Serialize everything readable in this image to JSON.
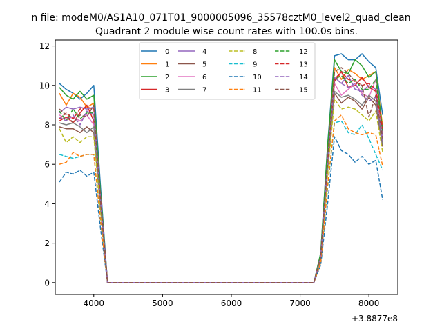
{
  "suptitle": "n file: modeM0/AS1A10_071T01_9000005096_35578cztM0_level2_quad_clean",
  "chart_data": {
    "type": "line",
    "title": "Quadrant 2 module wise count rates with 100.0s bins.",
    "xlabel": "",
    "ylabel": "",
    "x_offset_label": "+3.8877e8",
    "xlim": [
      3440,
      8420
    ],
    "ylim": [
      -0.6,
      12.3
    ],
    "xticks": [
      4000,
      5000,
      6000,
      7000,
      8000
    ],
    "xtick_labels": [
      "4000",
      "5000",
      "6000",
      "7000",
      "8000"
    ],
    "yticks": [
      0,
      2,
      4,
      6,
      8,
      10,
      12
    ],
    "ytick_labels": [
      "0",
      "2",
      "4",
      "6",
      "8",
      "10",
      "12"
    ],
    "grid": false,
    "legend_position": "upper center",
    "x": [
      3500,
      3600,
      3700,
      3800,
      3900,
      4000,
      4100,
      4200,
      4300,
      4400,
      4500,
      4600,
      4700,
      4800,
      4900,
      5000,
      5100,
      5200,
      5300,
      5400,
      5500,
      5600,
      5700,
      5800,
      5900,
      6000,
      6100,
      6200,
      6300,
      6400,
      6500,
      6600,
      6700,
      6800,
      6900,
      7000,
      7100,
      7200,
      7300,
      7400,
      7500,
      7600,
      7700,
      7800,
      7900,
      8000,
      8100,
      8200
    ],
    "series": [
      {
        "name": "0",
        "color": "#1f77b4",
        "dash": false,
        "start": [
          10.1,
          9.8,
          9.6,
          9.3,
          9.6,
          10.0,
          4.8
        ],
        "end": [
          1.5,
          7.0,
          11.5,
          11.6,
          11.3,
          11.3,
          11.6,
          11.2,
          10.9,
          8.5
        ]
      },
      {
        "name": "1",
        "color": "#ff7f0e",
        "dash": false,
        "start": [
          9.6,
          9.0,
          9.6,
          9.4,
          8.9,
          9.1,
          4.2
        ],
        "end": [
          1.4,
          6.6,
          10.9,
          10.3,
          10.8,
          10.6,
          10.3,
          10.5,
          10.7,
          7.9
        ]
      },
      {
        "name": "2",
        "color": "#2ca02c",
        "dash": false,
        "start": [
          9.9,
          9.5,
          9.3,
          9.7,
          9.3,
          9.5,
          4.5
        ],
        "end": [
          1.5,
          6.9,
          11.3,
          10.7,
          10.6,
          11.3,
          11.0,
          10.4,
          10.7,
          7.7
        ]
      },
      {
        "name": "3",
        "color": "#d62728",
        "dash": false,
        "start": [
          8.2,
          8.4,
          8.1,
          8.6,
          9.0,
          8.2,
          4.0
        ],
        "end": [
          1.3,
          6.0,
          10.2,
          10.7,
          9.9,
          10.0,
          10.4,
          9.9,
          9.7,
          7.5
        ]
      },
      {
        "name": "4",
        "color": "#9467bd",
        "dash": false,
        "start": [
          8.6,
          8.9,
          8.8,
          8.9,
          8.8,
          8.9,
          4.2
        ],
        "end": [
          1.3,
          6.2,
          10.4,
          10.1,
          10.5,
          9.8,
          9.7,
          10.0,
          9.8,
          7.4
        ]
      },
      {
        "name": "5",
        "color": "#8c564b",
        "dash": false,
        "start": [
          7.9,
          7.8,
          7.8,
          7.6,
          7.9,
          7.6,
          3.7
        ],
        "end": [
          1.2,
          5.7,
          9.6,
          9.1,
          9.4,
          9.2,
          8.8,
          9.4,
          9.0,
          6.9
        ]
      },
      {
        "name": "6",
        "color": "#e377c2",
        "dash": false,
        "start": [
          8.5,
          8.3,
          8.4,
          8.2,
          8.5,
          8.0,
          3.9
        ],
        "end": [
          1.3,
          5.9,
          10.1,
          9.5,
          9.8,
          10.1,
          9.6,
          9.4,
          10.3,
          7.1
        ]
      },
      {
        "name": "7",
        "color": "#7f7f7f",
        "dash": false,
        "start": [
          8.1,
          8.0,
          8.1,
          7.9,
          7.6,
          7.9,
          3.8
        ],
        "end": [
          1.2,
          5.8,
          9.7,
          9.4,
          9.5,
          9.3,
          9.0,
          9.5,
          9.2,
          7.0
        ]
      },
      {
        "name": "8",
        "color": "#bcbd22",
        "dash": true,
        "start": [
          7.8,
          7.1,
          7.4,
          7.1,
          7.4,
          7.4,
          3.6
        ],
        "end": [
          1.1,
          5.5,
          9.3,
          8.8,
          8.9,
          8.8,
          8.5,
          8.2,
          8.7,
          6.6
        ]
      },
      {
        "name": "9",
        "color": "#17becf",
        "dash": true,
        "start": [
          6.5,
          6.4,
          6.3,
          6.4,
          6.5,
          6.5,
          3.1
        ],
        "end": [
          1.0,
          4.8,
          8.1,
          8.2,
          7.6,
          7.5,
          8.0,
          7.3,
          6.5,
          5.7
        ]
      },
      {
        "name": "10",
        "color": "#1f77b4",
        "dash": true,
        "start": [
          5.1,
          5.6,
          5.5,
          5.7,
          5.4,
          5.6,
          2.7
        ],
        "end": [
          0.9,
          4.0,
          7.4,
          6.7,
          6.5,
          6.1,
          6.4,
          6.0,
          6.2,
          4.2
        ]
      },
      {
        "name": "11",
        "color": "#ff7f0e",
        "dash": true,
        "start": [
          6.0,
          6.1,
          6.6,
          6.4,
          6.5,
          6.5,
          3.1
        ],
        "end": [
          1.0,
          4.9,
          8.2,
          8.5,
          7.8,
          7.6,
          7.5,
          7.6,
          7.5,
          5.9
        ]
      },
      {
        "name": "12",
        "color": "#2ca02c",
        "dash": true,
        "start": [
          8.7,
          8.2,
          8.8,
          8.3,
          8.6,
          8.6,
          4.1
        ],
        "end": [
          1.3,
          6.0,
          10.3,
          10.5,
          10.1,
          10.3,
          9.8,
          9.8,
          10.3,
          7.7
        ]
      },
      {
        "name": "13",
        "color": "#d62728",
        "dash": true,
        "start": [
          8.3,
          8.6,
          8.3,
          8.8,
          8.9,
          8.8,
          4.2
        ],
        "end": [
          1.3,
          6.1,
          10.3,
          10.7,
          10.3,
          10.2,
          10.0,
          10.1,
          9.8,
          7.8
        ]
      },
      {
        "name": "14",
        "color": "#9467bd",
        "dash": true,
        "start": [
          8.4,
          8.2,
          8.5,
          8.0,
          8.7,
          8.5,
          4.1
        ],
        "end": [
          1.3,
          6.1,
          10.4,
          10.1,
          9.9,
          10.1,
          9.5,
          9.2,
          9.4,
          7.2
        ]
      },
      {
        "name": "15",
        "color": "#8c564b",
        "dash": true,
        "start": [
          8.8,
          8.5,
          8.1,
          8.5,
          8.4,
          9.0,
          4.0
        ],
        "end": [
          1.3,
          6.3,
          10.7,
          10.9,
          10.6,
          10.2,
          10.0,
          8.4,
          9.5,
          7.3
        ]
      }
    ]
  }
}
